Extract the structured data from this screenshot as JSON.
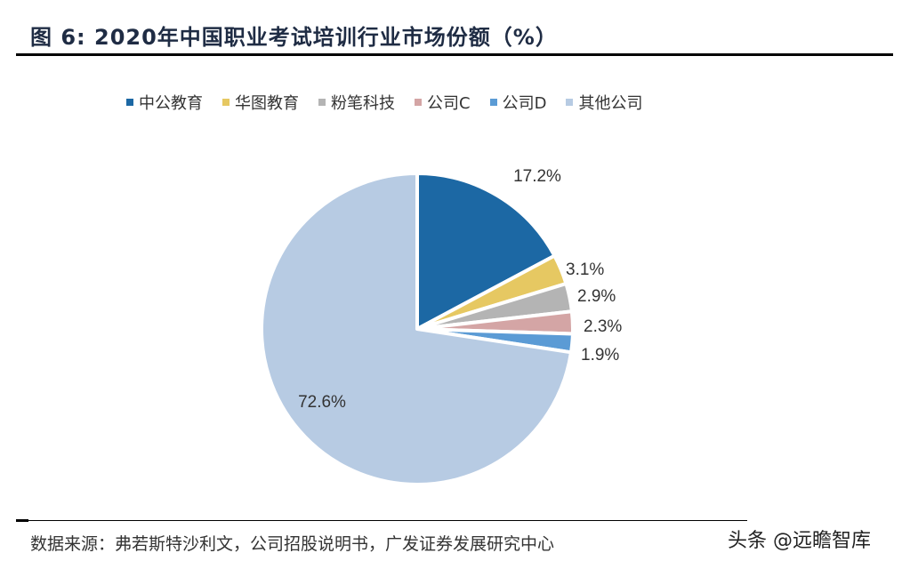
{
  "title": "图 6: 2020年中国职业考试培训行业市场份额（%）",
  "chart_data": {
    "type": "pie",
    "title": "2020年中国职业考试培训行业市场份额（%）",
    "figure_number": "图 6",
    "categories": [
      "中公教育",
      "华图教育",
      "粉笔科技",
      "公司C",
      "公司D",
      "其他公司"
    ],
    "values": [
      17.2,
      3.1,
      2.9,
      2.3,
      1.9,
      72.6
    ],
    "labels": [
      "17.2%",
      "3.1%",
      "2.9%",
      "2.3%",
      "1.9%",
      "72.6%"
    ],
    "colors": [
      "#1c68a4",
      "#e6c862",
      "#b4b4b4",
      "#d4a5a5",
      "#5b9bd5",
      "#b7cbe3"
    ],
    "start_angle": "12 o'clock",
    "direction": "clockwise",
    "legend_position": "top",
    "unit": "%"
  },
  "legend": [
    {
      "label": "中公教育",
      "color": "#1c68a4"
    },
    {
      "label": "华图教育",
      "color": "#e6c862"
    },
    {
      "label": "粉笔科技",
      "color": "#b4b4b4"
    },
    {
      "label": "公司C",
      "color": "#d4a5a5"
    },
    {
      "label": "公司D",
      "color": "#5b9bd5"
    },
    {
      "label": "其他公司",
      "color": "#b7cbe3"
    }
  ],
  "source": "数据来源：弗若斯特沙利文，公司招股说明书，广发证券发展研究中心",
  "watermark": "头条 @远瞻智库"
}
